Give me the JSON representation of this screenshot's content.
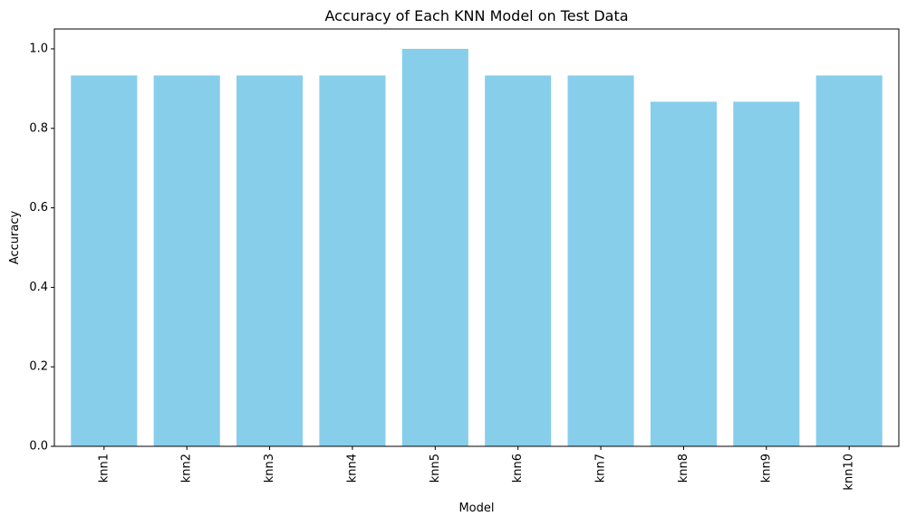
{
  "chart_data": {
    "type": "bar",
    "title": "Accuracy of Each KNN Model on Test Data",
    "xlabel": "Model",
    "ylabel": "Accuracy",
    "categories": [
      "knn1",
      "knn2",
      "knn3",
      "knn4",
      "knn5",
      "knn6",
      "knn7",
      "knn8",
      "knn9",
      "knn10"
    ],
    "values": [
      0.933,
      0.933,
      0.933,
      0.933,
      1.0,
      0.933,
      0.933,
      0.867,
      0.867,
      0.933
    ],
    "ylim": [
      0,
      1.05
    ],
    "yticks": [
      "0.0",
      "0.2",
      "0.4",
      "0.6",
      "0.8",
      "1.0"
    ],
    "x_tick_rotation": "vertical",
    "grid": false,
    "bar_color": "#87CEEB"
  }
}
